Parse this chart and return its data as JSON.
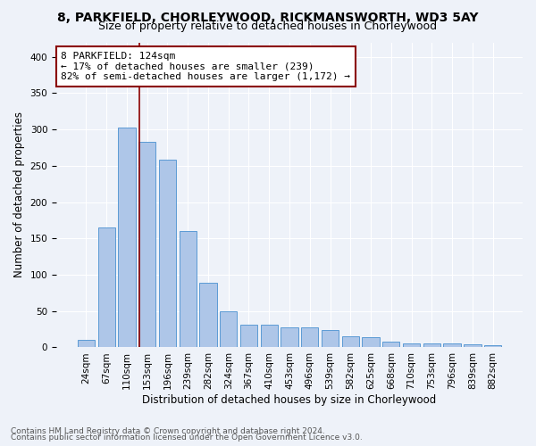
{
  "title1": "8, PARKFIELD, CHORLEYWOOD, RICKMANSWORTH, WD3 5AY",
  "title2": "Size of property relative to detached houses in Chorleywood",
  "xlabel": "Distribution of detached houses by size in Chorleywood",
  "ylabel": "Number of detached properties",
  "categories": [
    "24sqm",
    "67sqm",
    "110sqm",
    "153sqm",
    "196sqm",
    "239sqm",
    "282sqm",
    "324sqm",
    "367sqm",
    "410sqm",
    "453sqm",
    "496sqm",
    "539sqm",
    "582sqm",
    "625sqm",
    "668sqm",
    "710sqm",
    "753sqm",
    "796sqm",
    "839sqm",
    "882sqm"
  ],
  "values": [
    10,
    165,
    303,
    283,
    258,
    160,
    89,
    50,
    31,
    31,
    27,
    27,
    24,
    15,
    14,
    8,
    5,
    5,
    5,
    4,
    3
  ],
  "bar_color": "#aec6e8",
  "bar_edge_color": "#5b9bd5",
  "vline_pos": 2.6,
  "vline_color": "#8b0000",
  "annotation_text": "8 PARKFIELD: 124sqm\n← 17% of detached houses are smaller (239)\n82% of semi-detached houses are larger (1,172) →",
  "annotation_box_color": "#ffffff",
  "annotation_box_edge_color": "#8b0000",
  "ylim": [
    0,
    420
  ],
  "yticks": [
    0,
    50,
    100,
    150,
    200,
    250,
    300,
    350,
    400
  ],
  "footer1": "Contains HM Land Registry data © Crown copyright and database right 2024.",
  "footer2": "Contains public sector information licensed under the Open Government Licence v3.0.",
  "background_color": "#eef2f9",
  "plot_background_color": "#eef2f9",
  "title_fontsize": 10,
  "subtitle_fontsize": 9,
  "tick_fontsize": 7.5,
  "label_fontsize": 8.5,
  "footer_fontsize": 6.5,
  "annotation_fontsize": 8
}
